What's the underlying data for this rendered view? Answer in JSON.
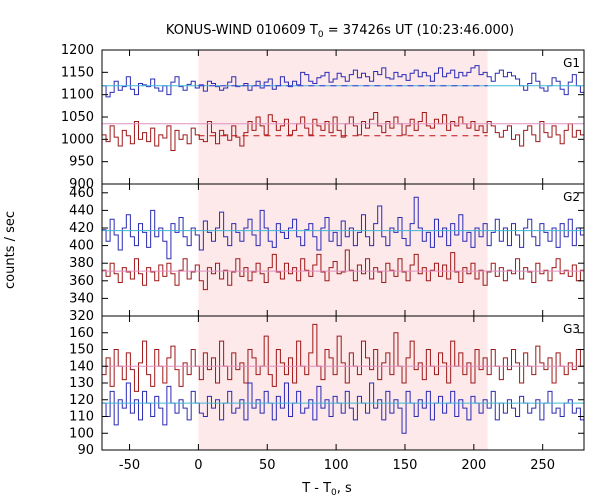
{
  "chart_data": {
    "type": "line",
    "title_main": "KONUS-WIND 010609 T",
    "title_sub": "0",
    "title_rest": " = 37426s UT (10:23:46.000)",
    "xlabel_main": "T - T",
    "xlabel_sub": "0",
    "xlabel_rest": ", s",
    "ylabel": "counts / sec",
    "xlim": [
      -70,
      280
    ],
    "xticks": [
      -50,
      0,
      50,
      100,
      150,
      200,
      250
    ],
    "shaded_interval": [
      0,
      210
    ],
    "colors": {
      "blue": "#2b2bb5",
      "red": "#a01818",
      "blue_fit": "#3fb8d6",
      "red_fit": "#e090c0",
      "shade": "#fde8ea",
      "blue_dash": "#3a3ad0",
      "red_dash": "#c01010"
    },
    "panels": [
      {
        "label": "G1",
        "ylim": [
          900,
          1200
        ],
        "yticks": [
          900,
          950,
          1000,
          1050,
          1100,
          1150,
          1200
        ],
        "series": [
          {
            "color_key": "blue",
            "x0": -70,
            "dx": 2.944,
            "values": [
              1120,
              1095,
              1105,
              1130,
              1110,
              1118,
              1140,
              1112,
              1100,
              1125,
              1122,
              1118,
              1135,
              1115,
              1108,
              1120,
              1100,
              1128,
              1140,
              1118,
              1110,
              1123,
              1130,
              1115,
              1122,
              1108,
              1130,
              1125,
              1118,
              1110,
              1115,
              1128,
              1140,
              1118,
              1120,
              1125,
              1110,
              1120,
              1130,
              1115,
              1128,
              1135,
              1112,
              1120,
              1140,
              1128,
              1118,
              1130,
              1122,
              1150,
              1145,
              1130,
              1125,
              1138,
              1142,
              1150,
              1128,
              1135,
              1148,
              1140,
              1130,
              1145,
              1155,
              1138,
              1148,
              1140,
              1130,
              1152,
              1145,
              1160,
              1138,
              1135,
              1150,
              1140,
              1145,
              1132,
              1148,
              1155,
              1140,
              1150,
              1142,
              1130,
              1148,
              1160,
              1140,
              1148,
              1155,
              1138,
              1150,
              1142,
              1150,
              1160,
              1165,
              1145,
              1150,
              1140,
              1130,
              1148,
              1155,
              1140,
              1150,
              1142,
              1135,
              1120,
              1110,
              1125,
              1148,
              1130,
              1115,
              1108,
              1120,
              1138,
              1130,
              1112,
              1100,
              1128,
              1145,
              1120,
              1105,
              1130
            ]
          },
          {
            "color_key": "red",
            "x0": -70,
            "dx": 2.944,
            "values": [
              1010,
              995,
              1030,
              1005,
              985,
              1020,
              1008,
              990,
              1040,
              1000,
              1015,
              995,
              1025,
              985,
              1010,
              1003,
              1030,
              975,
              1020,
              1000,
              1010,
              990,
              1025,
              1010,
              1000,
              995,
              1040,
              1015,
              990,
              1020,
              1010,
              998,
              1030,
              1005,
              985,
              1015,
              1040,
              1020,
              1050,
              1030,
              1010,
              1055,
              1040,
              1020,
              1030,
              1045,
              1010,
              1020,
              1035,
              1050,
              1025,
              1010,
              1045,
              1030,
              1020,
              1040,
              1015,
              1050,
              1020,
              1005,
              1035,
              1050,
              1030,
              1010,
              1040,
              1025,
              1045,
              1060,
              1030,
              1015,
              1040,
              1025,
              1050,
              1035,
              1010,
              1030,
              1045,
              1020,
              1040,
              1060,
              1030,
              1025,
              1045,
              1035,
              1055,
              1020,
              1040,
              1030,
              1050,
              1035,
              1025,
              1040,
              1020,
              1030,
              1015,
              1040,
              1030,
              1015,
              1005,
              1020,
              1030,
              1000,
              1010,
              985,
              1020,
              1030,
              1010,
              995,
              1040,
              1015,
              1005,
              1030,
              1010,
              990,
              1020,
              1035,
              1005,
              1020,
              1010,
              1000
            ]
          },
          {
            "color_key": "blue_fit",
            "values_const": 1120
          },
          {
            "color_key": "red_fit",
            "values_const": 1035
          },
          {
            "color_key": "blue_dash",
            "values_const": 1120,
            "interval": [
              0,
              210
            ]
          },
          {
            "color_key": "red_dash",
            "values_const": 1008,
            "interval": [
              0,
              210
            ]
          }
        ]
      },
      {
        "label": "G2",
        "ylim": [
          320,
          470
        ],
        "yticks": [
          320,
          340,
          360,
          380,
          400,
          420,
          440,
          460
        ],
        "series": [
          {
            "color_key": "blue",
            "x0": -70,
            "dx": 2.944,
            "values": [
              418,
              405,
              430,
              412,
              395,
              420,
              435,
              410,
              400,
              425,
              415,
              398,
              440,
              410,
              420,
              405,
              385,
              425,
              415,
              432,
              410,
              400,
              420,
              412,
              395,
              428,
              415,
              405,
              420,
              438,
              410,
              400,
              425,
              415,
              405,
              420,
              430,
              412,
              400,
              440,
              420,
              405,
              398,
              425,
              415,
              408,
              420,
              430,
              410,
              400,
              418,
              425,
              410,
              395,
              420,
              432,
              405,
              415,
              400,
              428,
              410,
              420,
              400,
              415,
              435,
              410,
              400,
              425,
              445,
              410,
              400,
              420,
              415,
              432,
              408,
              400,
              425,
              455,
              420,
              405,
              415,
              398,
              430,
              410,
              420,
              400,
              425,
              412,
              435,
              405,
              415,
              398,
              420,
              410,
              425,
              400,
              415,
              430,
              405,
              420,
              400,
              425,
              412,
              398,
              420,
              430,
              410,
              400,
              425,
              415,
              405,
              420,
              398,
              425,
              410,
              430,
              400,
              420,
              412,
              415
            ]
          },
          {
            "color_key": "red",
            "x0": -70,
            "dx": 2.944,
            "values": [
              372,
              365,
              380,
              368,
              358,
              375,
              370,
              362,
              385,
              368,
              355,
              375,
              370,
              360,
              378,
              365,
              380,
              368,
              355,
              372,
              385,
              362,
              370,
              378,
              360,
              350,
              375,
              368,
              380,
              362,
              372,
              355,
              370,
              385,
              365,
              375,
              360,
              370,
              380,
              368,
              358,
              375,
              390,
              370,
              362,
              380,
              368,
              375,
              360,
              385,
              372,
              365,
              378,
              390,
              370,
              360,
              375,
              382,
              368,
              370,
              395,
              372,
              360,
              378,
              368,
              385,
              362,
              375,
              370,
              358,
              380,
              372,
              365,
              385,
              370,
              360,
              378,
              390,
              368,
              375,
              360,
              372,
              380,
              365,
              378,
              362,
              392,
              370,
              358,
              375,
              368,
              380,
              362,
              372,
              355,
              370,
              380,
              365,
              375,
              360,
              372,
              368,
              385,
              362,
              375,
              370,
              358,
              380,
              368,
              372,
              360,
              375,
              385,
              368,
              372,
              365,
              378,
              360,
              372,
              380
            ]
          },
          {
            "color_key": "blue_fit",
            "values_const": 417
          },
          {
            "color_key": "red_fit",
            "values_const": 371
          }
        ]
      },
      {
        "label": "G3",
        "ylim": [
          90,
          170
        ],
        "yticks": [
          90,
          100,
          110,
          120,
          130,
          140,
          150,
          160
        ],
        "series": [
          {
            "color_key": "red",
            "x0": -70,
            "dx": 2.944,
            "values": [
              135,
              145,
              128,
              150,
              140,
              132,
              148,
              138,
              125,
              142,
              155,
              135,
              128,
              150,
              140,
              130,
              145,
              152,
              138,
              128,
              142,
              135,
              150,
              140,
              132,
              148,
              138,
              145,
              130,
              155,
              140,
              132,
              148,
              138,
              142,
              130,
              150,
              145,
              135,
              140,
              158,
              135,
              128,
              150,
              142,
              135,
              145,
              130,
              155,
              140,
              135,
              148,
              165,
              140,
              132,
              150,
              145,
              135,
              158,
              142,
              130,
              148,
              140,
              135,
              155,
              145,
              138,
              150,
              132,
              142,
              148,
              135,
              160,
              140,
              130,
              145,
              155,
              138,
              142,
              132,
              150,
              140,
              135,
              148,
              142,
              130,
              155,
              140,
              148,
              135,
              142,
              130,
              150,
              138,
              145,
              135,
              150,
              140,
              132,
              145,
              138,
              150,
              142,
              130,
              148,
              140,
              135,
              152,
              142,
              138,
              145,
              130,
              148,
              140,
              135,
              142,
              138,
              150,
              140,
              132
            ]
          },
          {
            "color_key": "blue",
            "x0": -70,
            "dx": 2.944,
            "values": [
              118,
              110,
              125,
              105,
              120,
              115,
              130,
              112,
              120,
              108,
              125,
              118,
              110,
              122,
              115,
              105,
              128,
              118,
              112,
              120,
              115,
              108,
              125,
              118,
              112,
              110,
              122,
              115,
              120,
              108,
              118,
              125,
              112,
              115,
              120,
              108,
              130,
              115,
              120,
              112,
              125,
              118,
              108,
              122,
              115,
              130,
              110,
              118,
              125,
              112,
              115,
              120,
              108,
              128,
              115,
              120,
              110,
              122,
              118,
              112,
              125,
              115,
              108,
              122,
              118,
              112,
              130,
              115,
              120,
              108,
              125,
              112,
              120,
              115,
              100,
              125,
              118,
              110,
              120,
              115,
              125,
              108,
              118,
              122,
              112,
              118,
              125,
              110,
              120,
              115,
              108,
              122,
              118,
              112,
              120,
              115,
              125,
              108,
              118,
              112,
              120,
              115,
              110,
              122,
              118,
              112,
              115,
              120,
              108,
              118,
              125,
              112,
              115,
              110,
              118,
              120,
              112,
              115,
              108,
              118
            ]
          },
          {
            "color_key": "blue_fit",
            "values_const": 118
          },
          {
            "color_key": "red_fit",
            "values_const": 140
          }
        ]
      }
    ]
  }
}
